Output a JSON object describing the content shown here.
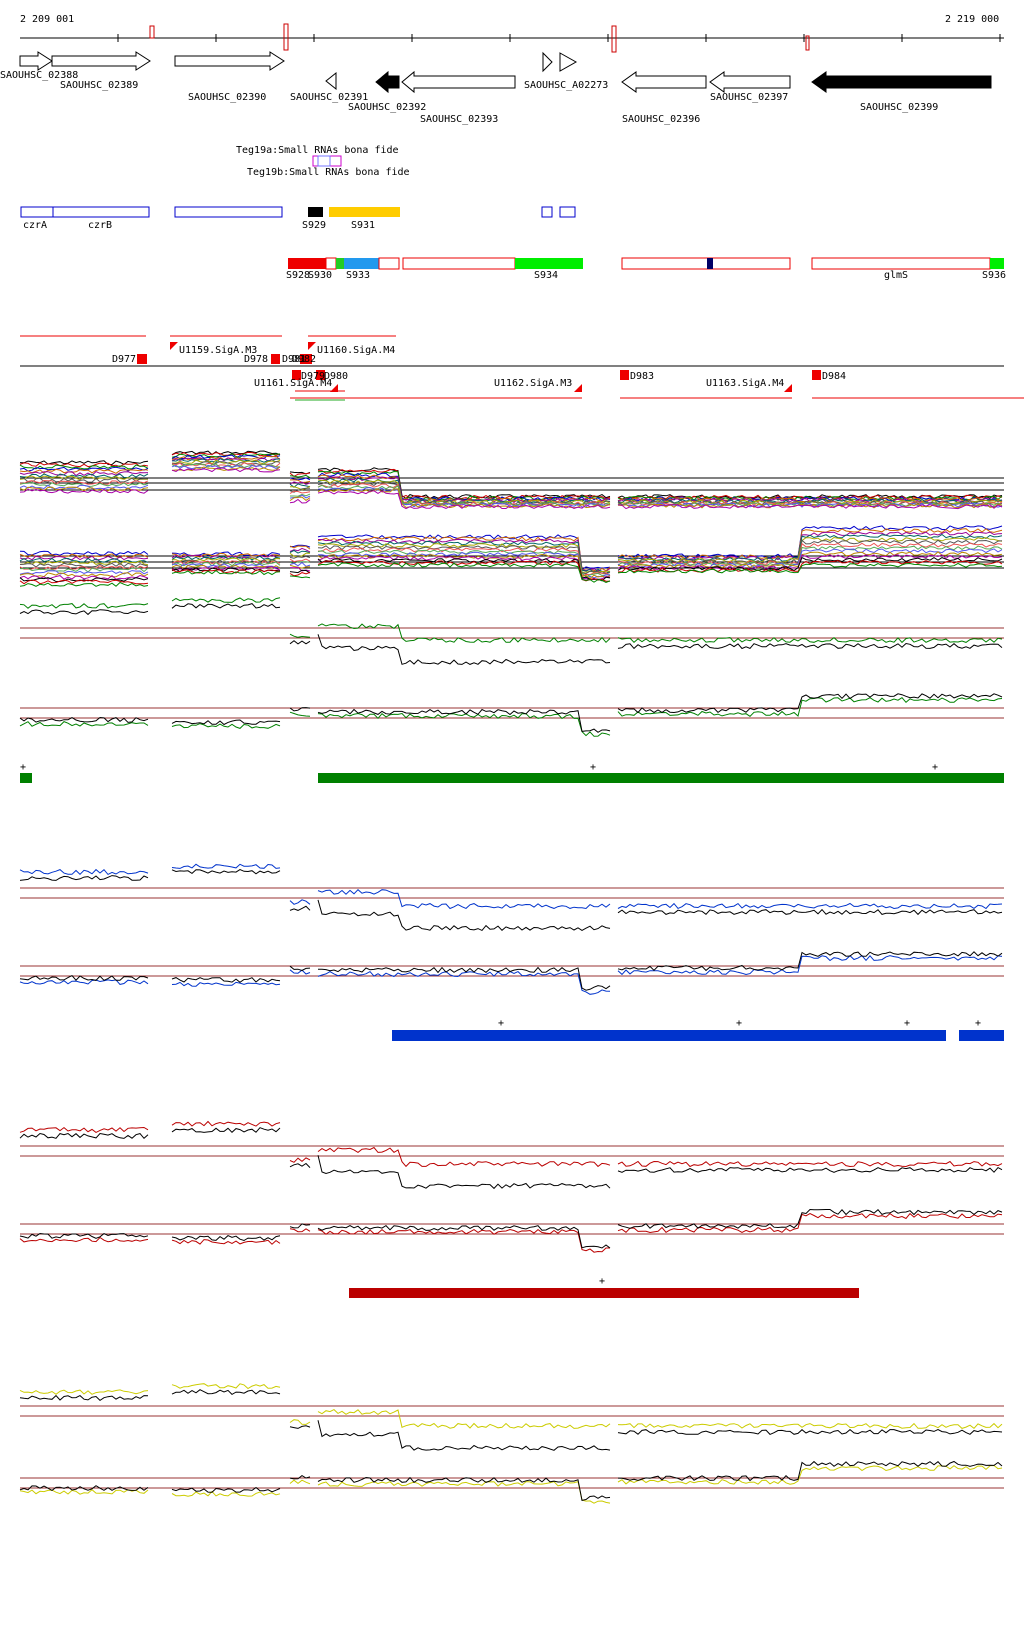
{
  "coordinates": {
    "start": "2 209 001",
    "end": "2 219 000"
  },
  "genes": [
    {
      "label": "SAOUHSC_02388",
      "filled": false,
      "dir": "right"
    },
    {
      "label": "SAOUHSC_02389",
      "filled": false,
      "dir": "right"
    },
    {
      "label": "SAOUHSC_02390",
      "filled": false,
      "dir": "right"
    },
    {
      "label": "SAOUHSC_02391",
      "filled": false,
      "dir": "left"
    },
    {
      "label": "SAOUHSC_02392",
      "filled": true,
      "dir": "left"
    },
    {
      "label": "SAOUHSC_02393",
      "filled": false,
      "dir": "left"
    },
    {
      "label": "SAOUHSC_A02273",
      "filled": false,
      "dir": "right"
    },
    {
      "label": "SAOUHSC_02396",
      "filled": false,
      "dir": "left"
    },
    {
      "label": "SAOUHSC_02397",
      "filled": false,
      "dir": "left"
    },
    {
      "label": "SAOUHSC_02399",
      "filled": true,
      "dir": "left"
    }
  ],
  "small_rnas": [
    "Teg19a:Small RNAs bona fide",
    "Teg19b:Small RNAs bona fide"
  ],
  "operons": [
    "czrA",
    "czrB"
  ],
  "sites": [
    "S929",
    "S931",
    "S928",
    "S930",
    "S933",
    "S934",
    "glmS",
    "S936"
  ],
  "promoters": [
    "D977",
    "U1159.SigA.M3",
    "D978",
    "D981",
    "D982",
    "U1160.SigA.M4",
    "U1161.SigA.M4",
    "D979",
    "D980",
    "U1162.SigA.M3",
    "D983",
    "U1163.SigA.M4",
    "D984"
  ],
  "tracks": {
    "green": {
      "color": "#008000",
      "markers": [
        "+",
        "+",
        "+"
      ]
    },
    "blue": {
      "color": "#0033cc",
      "markers": [
        "+",
        "+",
        "+",
        "+"
      ]
    },
    "red": {
      "color": "#bb0000",
      "markers": [
        "+"
      ]
    },
    "yellow": {
      "color": "#cccc00"
    }
  }
}
